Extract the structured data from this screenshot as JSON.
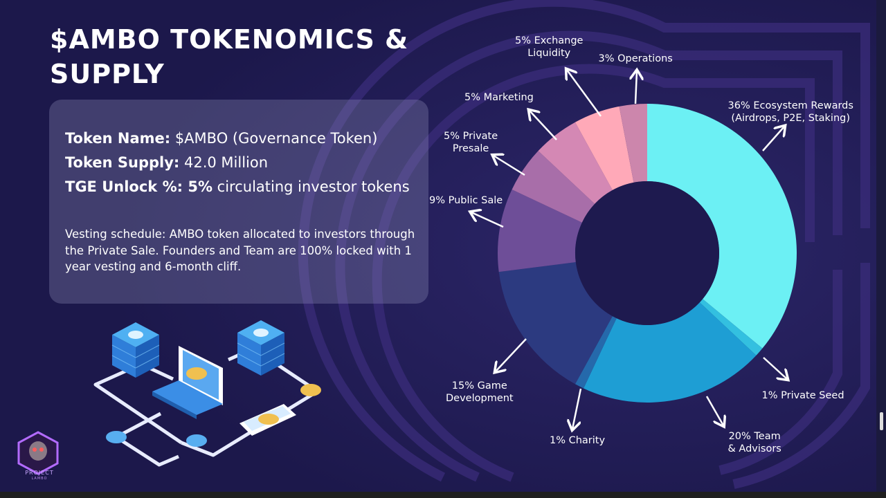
{
  "title": "$AMBO TOKENOMICS & SUPPLY",
  "info": {
    "token_name_label": "Token Name:",
    "token_name_value": " $AMBO (Governance Token)",
    "token_supply_label": "Token Supply:",
    "token_supply_value": " 42.0 Million",
    "tge_label": "TGE Unlock %:",
    "tge_percent": " 5%",
    "tge_value": " circulating investor tokens",
    "vesting": "Vesting schedule: AMBO token allocated to investors through the Private Sale. Founders and Team are 100% locked with 1 year vesting and 6-month cliff."
  },
  "logo": {
    "line1": "PROJECT",
    "line2": "LAMBO"
  },
  "chart_data": {
    "type": "pie",
    "style": "donut",
    "unit": "%",
    "slices": [
      {
        "name": "Ecosystem Rewards (Airdrops, P2E, Staking)",
        "value": 36,
        "color": "#6cf0f4",
        "label": [
          "36% Ecosystem Rewards",
          "(Airdrops, P2E, Staking)"
        ]
      },
      {
        "name": "Private Seed",
        "value": 1,
        "color": "#33c0e0",
        "label": [
          "1% Private Seed"
        ]
      },
      {
        "name": "Team & Advisors",
        "value": 20,
        "color": "#1e9ed4",
        "label": [
          "20% Team",
          "& Advisors"
        ]
      },
      {
        "name": "Charity",
        "value": 1,
        "color": "#2569ab",
        "label": [
          "1% Charity"
        ]
      },
      {
        "name": "Game Development",
        "value": 15,
        "color": "#2c3a80",
        "label": [
          "15% Game",
          "Development"
        ]
      },
      {
        "name": "Public Sale",
        "value": 9,
        "color": "#6e4e98",
        "label": [
          "9% Public Sale"
        ]
      },
      {
        "name": "Private Presale",
        "value": 5,
        "color": "#a86ea9",
        "label": [
          "5% Private",
          "Presale"
        ]
      },
      {
        "name": "Marketing",
        "value": 5,
        "color": "#d488b4",
        "label": [
          "5% Marketing"
        ]
      },
      {
        "name": "Exchange Liquidity",
        "value": 5,
        "color": "#ffa9b8",
        "label": [
          "5% Exchange",
          "Liquidity"
        ]
      },
      {
        "name": "Operations",
        "value": 3,
        "color": "#cc86ac",
        "label": [
          "3% Operations"
        ]
      }
    ]
  }
}
